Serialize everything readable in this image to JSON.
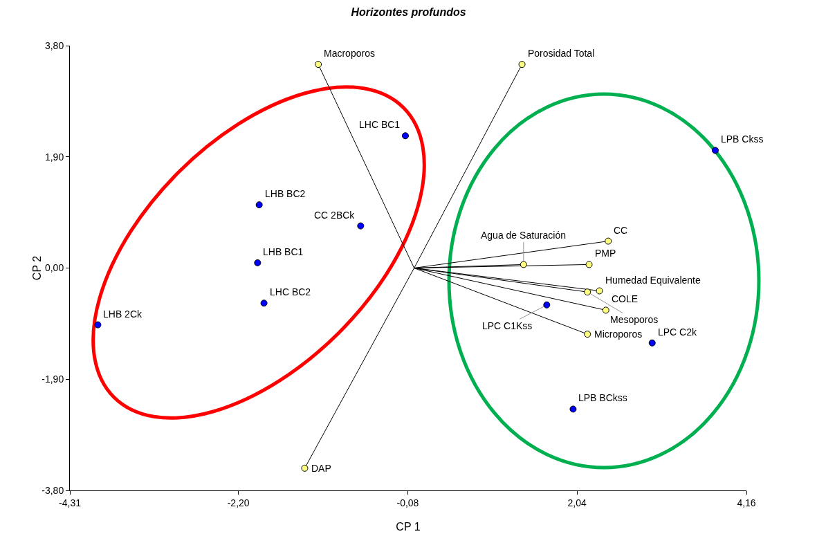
{
  "chart_data": {
    "type": "scatter",
    "title": "Horizontes profundos",
    "xlabel": "CP 1",
    "ylabel": "CP 2",
    "xlim": [
      -4.31,
      4.16
    ],
    "ylim": [
      -3.8,
      3.8
    ],
    "xticks": [
      {
        "value": -4.31,
        "label": "-4,31"
      },
      {
        "value": -2.2,
        "label": "-2,20"
      },
      {
        "value": -0.08,
        "label": "-0,08"
      },
      {
        "value": 2.04,
        "label": "2,04"
      },
      {
        "value": 4.16,
        "label": "4,16"
      }
    ],
    "yticks": [
      {
        "value": -3.8,
        "label": "-3,80"
      },
      {
        "value": -1.9,
        "label": "-1,90"
      },
      {
        "value": 0,
        "label": "0,00"
      },
      {
        "value": 1.9,
        "label": "1,90"
      },
      {
        "value": 3.8,
        "label": "3,80"
      }
    ],
    "grid": false,
    "marker": "circle",
    "series": [
      {
        "type": "line",
        "marker": "none",
        "color": "#000000",
        "x": [
          0,
          -1.2
        ],
        "values": [
          0,
          3.48
        ]
      },
      {
        "type": "line",
        "marker": "none",
        "color": "#000000",
        "x": [
          -1.37,
          0,
          1.35
        ],
        "values": [
          -3.42,
          0,
          3.48
        ]
      },
      {
        "type": "line",
        "marker": "none",
        "color": "#000000",
        "x": [
          0,
          2.43
        ],
        "values": [
          0,
          0.46
        ]
      },
      {
        "type": "line",
        "marker": "none",
        "color": "#000000",
        "x": [
          0,
          2.19
        ],
        "values": [
          0,
          0.06
        ]
      },
      {
        "type": "line",
        "marker": "none",
        "color": "#000000",
        "x": [
          0,
          2.32
        ],
        "values": [
          0,
          -0.39
        ]
      },
      {
        "type": "line",
        "marker": "none",
        "color": "#000000",
        "x": [
          0,
          1.37
        ],
        "values": [
          0,
          0.06
        ]
      },
      {
        "type": "line",
        "marker": "none",
        "color": "#000000",
        "x": [
          0,
          2.17
        ],
        "values": [
          0,
          -0.41
        ]
      },
      {
        "type": "line",
        "marker": "none",
        "color": "#000000",
        "x": [
          0,
          2.4
        ],
        "values": [
          0,
          -0.72
        ]
      },
      {
        "type": "line",
        "marker": "none",
        "color": "#000000",
        "x": [
          0,
          2.17
        ],
        "values": [
          0,
          -1.13
        ]
      },
      {
        "type": "scatter",
        "color": "#ffff80",
        "x": [
          -1.2,
          1.35,
          -1.37,
          2.43,
          2.19,
          2.32,
          1.37,
          2.17,
          2.4,
          2.17
        ],
        "values": [
          3.48,
          3.48,
          -3.42,
          0.46,
          0.06,
          -0.39,
          0.06,
          -0.41,
          -0.72,
          -1.13
        ]
      },
      {
        "type": "scatter",
        "color": "#0000ff",
        "x": [
          -0.11,
          -1.94,
          -0.67,
          -1.96,
          -1.88,
          -3.96,
          3.77,
          1.66,
          2.98,
          1.99
        ],
        "values": [
          2.26,
          1.08,
          0.72,
          0.09,
          -0.6,
          -0.97,
          2.01,
          -0.63,
          -1.28,
          -2.41
        ]
      }
    ],
    "annotations": [
      {
        "text": "Macroporos",
        "x": -1.2,
        "y": 3.48
      },
      {
        "text": "Porosidad Total",
        "x": 1.35,
        "y": 3.48
      },
      {
        "text": "DAP",
        "x": -1.37,
        "y": -3.42
      },
      {
        "text": "CC",
        "x": 2.43,
        "y": 0.46
      },
      {
        "text": "PMP",
        "x": 2.19,
        "y": 0.06
      },
      {
        "text": "Humedad Equivalente",
        "x": 2.32,
        "y": -0.39
      },
      {
        "text": "Agua de Saturación",
        "x": 1.37,
        "y": 0.06
      },
      {
        "text": "Mesoporos",
        "x": 2.17,
        "y": -0.41
      },
      {
        "text": "COLE",
        "x": 2.4,
        "y": -0.72
      },
      {
        "text": "Microporos",
        "x": 2.17,
        "y": -1.13
      },
      {
        "text": "LHC BC1",
        "x": -0.11,
        "y": 2.26
      },
      {
        "text": "LHB BC2",
        "x": -1.94,
        "y": 1.08
      },
      {
        "text": "CC 2BCk",
        "x": -0.67,
        "y": 0.72
      },
      {
        "text": "LHB BC1",
        "x": -1.96,
        "y": 0.09
      },
      {
        "text": "LHC BC2",
        "x": -1.88,
        "y": -0.6
      },
      {
        "text": "LHB 2Ck",
        "x": -3.96,
        "y": -0.97
      },
      {
        "text": "LPB Ckss",
        "x": 3.77,
        "y": 2.01
      },
      {
        "text": "LPC C1Kss",
        "x": 1.66,
        "y": -0.63
      },
      {
        "text": "LPC C2k",
        "x": 2.98,
        "y": -1.28
      },
      {
        "text": "LPB BCkss",
        "x": 1.99,
        "y": -2.41
      }
    ]
  }
}
